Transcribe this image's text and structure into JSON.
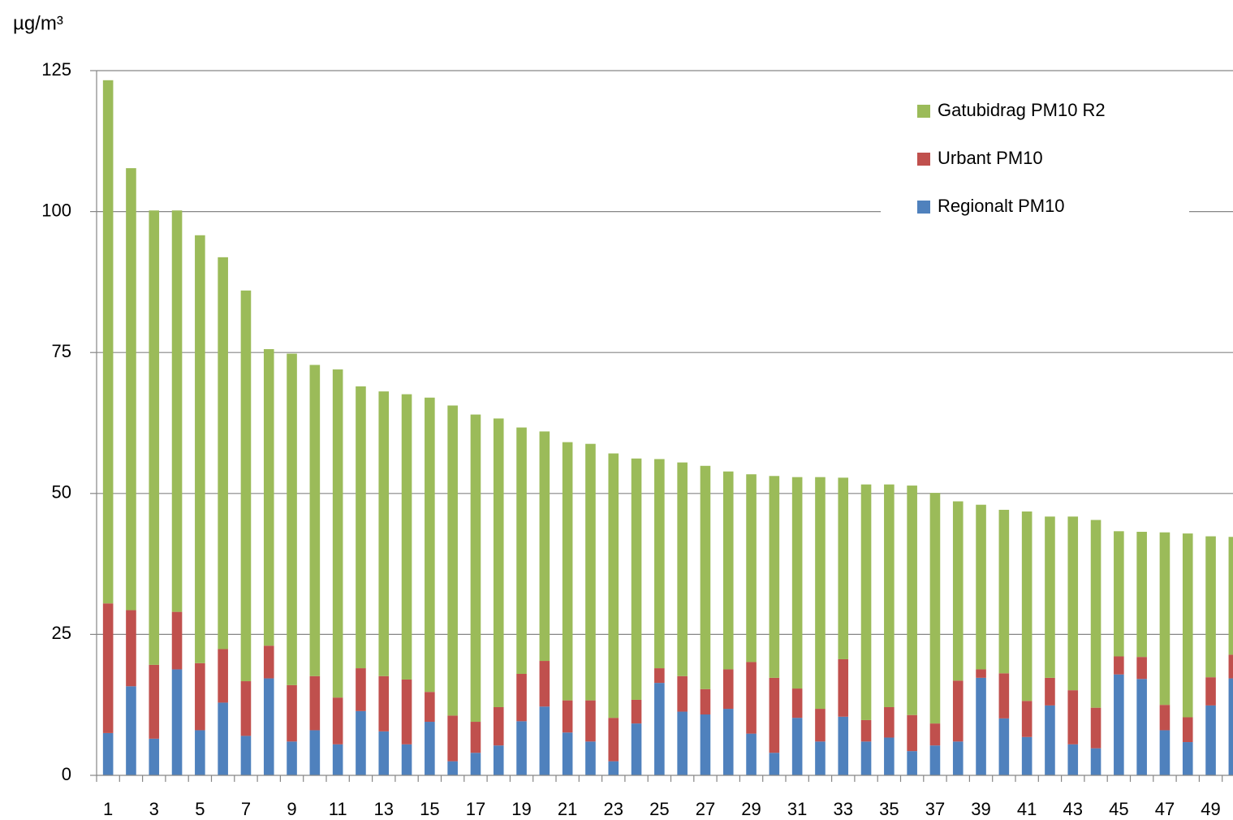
{
  "chart_data": {
    "type": "stacked_bar",
    "y_label": "µg/m³",
    "categories": [
      "1",
      null,
      "3",
      null,
      "5",
      null,
      "7",
      null,
      "9",
      null,
      "11",
      null,
      "13",
      null,
      "15",
      null,
      "17",
      null,
      "19",
      null,
      "21",
      null,
      "23",
      null,
      "25",
      null,
      "27",
      null,
      "29",
      null,
      "31",
      null,
      "33",
      null,
      "35",
      null,
      "37",
      null,
      "39",
      null,
      "41",
      null,
      "43",
      null,
      "45",
      null,
      "47",
      null,
      "49",
      null
    ],
    "series": [
      {
        "name": "Regionalt PM10",
        "color": "#4f81bd",
        "values": [
          7.5,
          15.8,
          6.5,
          18.8,
          8.0,
          12.9,
          7.0,
          17.2,
          6.0,
          8.0,
          5.5,
          11.4,
          7.8,
          5.5,
          9.5,
          2.5,
          4.0,
          5.3,
          9.6,
          12.2,
          7.6,
          6.0,
          2.5,
          9.2,
          16.4,
          11.3,
          10.8,
          11.8,
          7.4,
          4.0,
          10.2,
          6.0,
          10.4,
          6.0,
          6.7,
          4.3,
          5.3,
          6.0,
          17.3,
          10.1,
          6.8,
          12.4,
          5.5,
          4.8,
          17.9,
          17.1,
          8.0,
          5.9,
          12.4,
          17.2
        ]
      },
      {
        "name": "Urbant PM10",
        "color": "#c0504d",
        "values": [
          23.0,
          13.5,
          13.1,
          10.2,
          11.9,
          9.5,
          9.7,
          5.8,
          10.0,
          9.6,
          8.3,
          7.6,
          9.8,
          11.5,
          5.3,
          8.1,
          5.5,
          6.8,
          8.4,
          8.1,
          5.7,
          7.3,
          7.7,
          4.2,
          2.6,
          6.3,
          4.5,
          7.0,
          12.7,
          13.3,
          5.2,
          5.8,
          10.2,
          3.8,
          5.4,
          6.4,
          3.9,
          10.8,
          1.5,
          8.0,
          6.4,
          4.9,
          9.6,
          7.2,
          3.2,
          3.9,
          4.5,
          4.4,
          5.0,
          4.2
        ]
      },
      {
        "name": "Gatubidrag PM10 R2",
        "color": "#9bbb59",
        "values": [
          92.8,
          78.4,
          80.6,
          71.2,
          75.9,
          69.5,
          69.3,
          52.6,
          58.8,
          55.2,
          58.2,
          50.0,
          50.5,
          50.6,
          52.2,
          55.0,
          54.5,
          51.2,
          43.7,
          40.7,
          45.8,
          45.5,
          46.9,
          42.8,
          37.1,
          37.9,
          39.6,
          35.1,
          33.3,
          35.8,
          37.5,
          41.1,
          32.2,
          41.8,
          39.5,
          40.7,
          40.9,
          31.8,
          29.2,
          29.0,
          33.6,
          28.6,
          30.8,
          33.3,
          22.2,
          22.2,
          30.6,
          32.6,
          25.0,
          20.9
        ]
      }
    ],
    "ylim": [
      0,
      125
    ],
    "yticks": [
      0,
      25,
      50,
      75,
      100,
      125
    ],
    "grid": true,
    "legend": "upper right"
  }
}
